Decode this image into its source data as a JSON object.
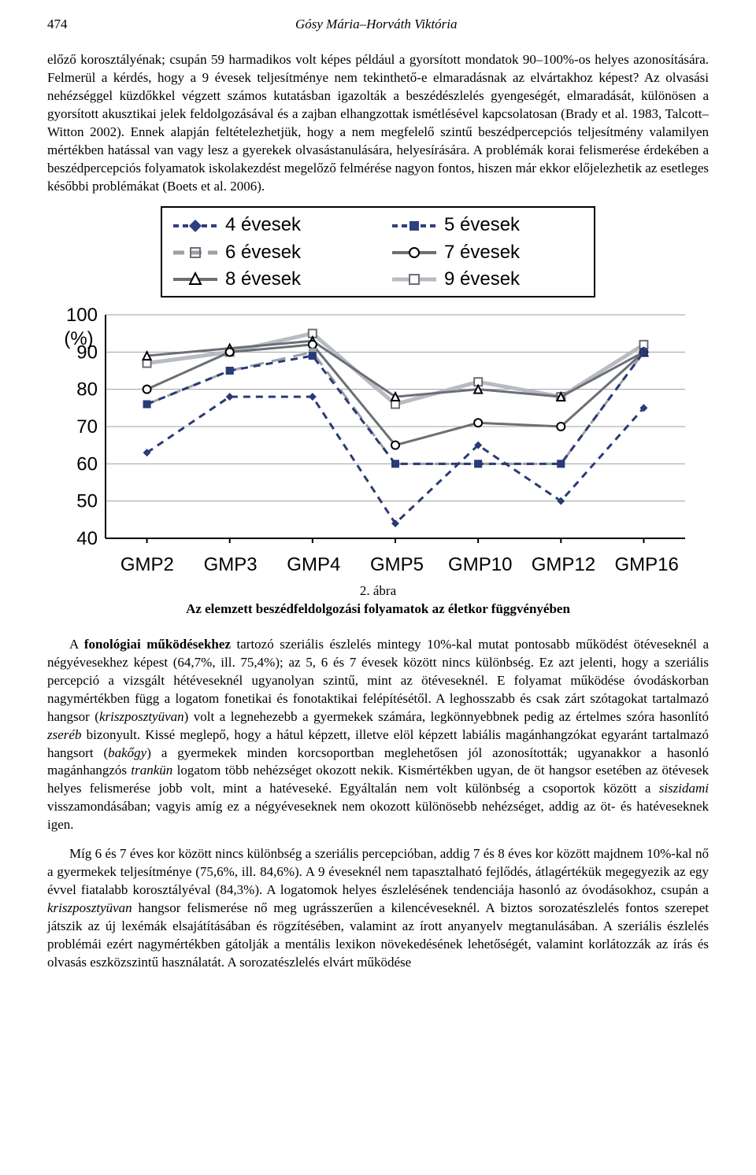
{
  "header": {
    "page_number": "474",
    "running": "Gósy Mária–Horváth Viktória"
  },
  "para1": "előző korosztályénak; csupán 59 harmadikos volt képes például a gyorsított mondatok 90–100%-os helyes azonosítására. Felmerül a kérdés, hogy a 9 évesek teljesítménye nem tekinthető-e elmaradásnak az elvártakhoz képest? Az olvasási nehézséggel küzdőkkel végzett számos kutatásban igazolták a beszédészlelés gyengeségét, elmaradását, különösen a gyorsított akusztikai jelek feldolgozásával és a zajban elhangzottak ismétlésével kapcsolatosan (Brady et al. 1983, Talcott–Witton 2002). Ennek alapján feltételezhetjük, hogy a nem megfelelő szintű beszédpercepciós teljesítmény valamilyen mértékben hatással van vagy lesz a gyerekek olvasástanulására, helyesírására. A problémák korai felismerése érdekében a beszédpercepciós folyamatok iskolakezdést megelőző felmérése nagyon fontos, hiszen már ekkor előjelezhetik az esetleges későbbi problémákat (Boets et al. 2006).",
  "chart": {
    "type": "line",
    "legend": [
      "4 évesek",
      "5 évesek",
      "6 évesek",
      "7 évesek",
      "8 évesek",
      "9 évesek"
    ],
    "categories": [
      "GMP2",
      "GMP3",
      "GMP4",
      "GMP5",
      "GMP10",
      "GMP12",
      "GMP16"
    ],
    "ylim": [
      40,
      100
    ],
    "ytick_step": 10,
    "ylabel": "(%)",
    "background_color": "#ffffff",
    "grid_color": "#a0a0a0",
    "series": {
      "4": {
        "label": "4 évesek",
        "color": "#2a3a78",
        "stroke": "dash",
        "marker": "diamond",
        "values": [
          63,
          78,
          78,
          44,
          65,
          50,
          75
        ]
      },
      "5": {
        "label": "5 évesek",
        "color": "#2a3a78",
        "stroke": "dash",
        "marker": "square",
        "values": [
          76,
          85,
          89,
          60,
          60,
          60,
          90
        ]
      },
      "6": {
        "label": "6 évesek",
        "color": "#9aa0a6",
        "stroke": "longdash",
        "marker": "square",
        "values": [
          76,
          85,
          90,
          60,
          60,
          60,
          90
        ]
      },
      "7": {
        "label": "7 évesek",
        "color": "#6b6f76",
        "stroke": "solid",
        "marker": "circle",
        "values": [
          80,
          90,
          92,
          65,
          71,
          70,
          90
        ]
      },
      "8": {
        "label": "8 évesek",
        "color": "#6b6f76",
        "stroke": "solid",
        "marker": "triangle",
        "values": [
          89,
          91,
          93,
          78,
          80,
          78,
          90
        ]
      },
      "9": {
        "label": "9 évesek",
        "color": "#b8bcc2",
        "stroke": "solid",
        "marker": "square_open",
        "values": [
          87,
          90,
          95,
          76,
          82,
          78,
          92
        ]
      }
    },
    "axis_font": "Arial",
    "axis_fontsize": 24,
    "line_width": 3,
    "marker_size": 10
  },
  "caption": {
    "line1": "2. ábra",
    "line2": "Az elemzett beszédfeldolgozási folyamatok az életkor függvényében"
  },
  "para2_pre": "A ",
  "para2_bold": "fonológiai működésekhez",
  "para2_text": " tartozó szeriális észlelés mintegy 10%-kal mutat pontosabb működést ötéveseknél a négyévesekhez képest (64,7%, ill. 75,4%); az 5, 6 és 7 évesek között nincs különbség. Ez azt jelenti, hogy a szeriális percepció a vizsgált hétéveseknél ugyanolyan szintű, mint az ötéveseknél. E folyamat működése óvodáskorban nagymértékben függ a logatom fonetikai és fonotaktikai felépítésétől. A leghosszabb és csak zárt szótagokat tartalmazó hangsor (",
  "para2_it1": "kriszposztyüvan",
  "para2_mid1": ") volt a legnehezebb a gyermekek számára, legkönnyebbnek pedig az értelmes szóra hasonlító ",
  "para2_it2": "zseréb",
  "para2_mid2": " bizonyult. Kissé meglepő, hogy a hátul képzett, illetve elöl képzett labiális magánhangzókat egyaránt tartalmazó hangsort (",
  "para2_it3": "bakőgy",
  "para2_mid3": ") a gyermekek minden korcsoportban meglehetősen jól azonosították; ugyanakkor a hasonló magánhangzós ",
  "para2_it4": "trankün",
  "para2_mid4": " logatom több nehézséget okozott nekik. Kismértékben ugyan, de öt hangsor esetében az ötévesek helyes felismerése jobb volt, mint a hatéveseké. Egyáltalán nem volt különbség a csoportok között a ",
  "para2_it5": "siszidami",
  "para2_end": " visszamondásában; vagyis amíg ez a négyéveseknek nem okozott különösebb nehézséget, addig az öt- és hatéveseknek igen.",
  "para3_a": "Míg 6 és 7 éves kor között nincs különbség a szeriális percepcióban, addig 7 és 8 éves kor között majdnem 10%-kal nő a gyermekek teljesítménye (75,6%, ill. 84,6%). A 9 éveseknél nem tapasztalható fejlődés, átlagértékük megegyezik az egy évvel fiatalabb korosztályéval (84,3%). A logatomok helyes észlelésének tendenciája hasonló az óvodásokhoz, csupán a ",
  "para3_it1": "kriszposztyüvan",
  "para3_b": " hangsor felismerése nő meg ugrásszerűen a kilencéveseknél. A biztos sorozatészlelés fontos szerepet játszik az új lexémák elsajátításában és rögzítésében, valamint az írott anyanyelv megtanulásában. A szeriális észlelés problémái ezért nagymértékben gátolják a mentális lexikon növekedésének lehetőségét, valamint korlátozzák az írás és olvasás eszközszintű használatát. A sorozatészlelés elvárt működése"
}
